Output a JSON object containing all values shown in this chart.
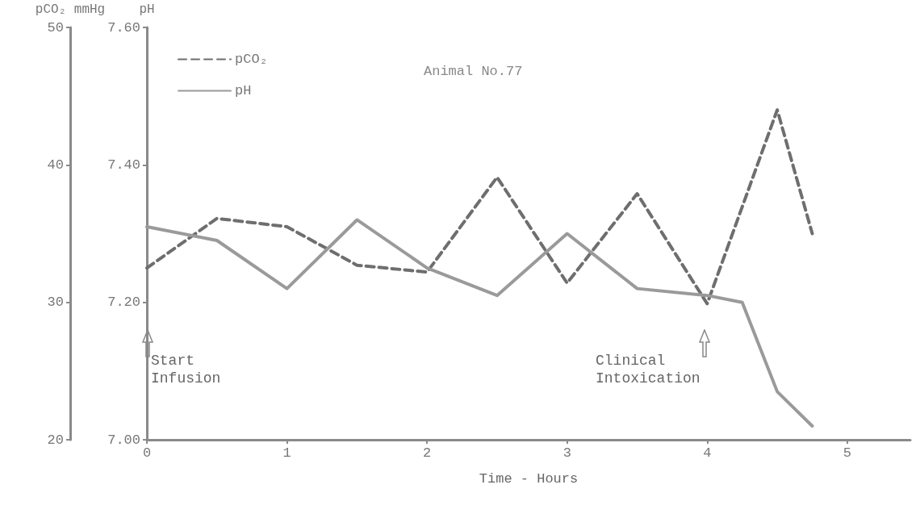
{
  "chart_data": {
    "type": "line",
    "title": "Animal No.77",
    "xlabel": "Time - Hours",
    "ylabel": "pH",
    "y2label": "pCO₂ mmHg",
    "x": [
      0,
      0.5,
      1,
      1.5,
      2,
      2.5,
      3,
      3.5,
      4,
      4.25,
      4.5,
      4.75
    ],
    "series": [
      {
        "name": "pCO₂",
        "color": "#6e6e6e",
        "axis": "y2",
        "line_style": "dashed",
        "x": [
          0,
          0.5,
          1,
          1.5,
          2,
          2.5,
          3,
          3.5,
          4,
          4.5,
          4.75
        ],
        "values": [
          32.5,
          36.1,
          35.5,
          32.7,
          32.2,
          39.1,
          31.4,
          37.9,
          29.9,
          44.0,
          35.0
        ]
      },
      {
        "name": "pH",
        "color": "#9a9a9a",
        "line_style": "solid",
        "values": [
          7.31,
          7.29,
          7.22,
          7.32,
          7.25,
          7.21,
          7.3,
          7.22,
          7.21,
          7.2,
          7.07,
          7.02
        ]
      }
    ],
    "xlim": [
      0,
      5.45
    ],
    "xticks": [
      0,
      1,
      2,
      3,
      4,
      5
    ],
    "ylim": [
      7.0,
      7.6
    ],
    "yticks": [
      {
        "value": 7.0,
        "label": "7.00"
      },
      {
        "value": 7.2,
        "label": "7.20"
      },
      {
        "value": 7.4,
        "label": "7.40"
      },
      {
        "value": 7.6,
        "label": "7.60"
      }
    ],
    "y2lim": [
      20,
      50
    ],
    "y2ticks": [
      20,
      30,
      40,
      50
    ],
    "annotations": [
      "Start\nInfusion",
      "Clinical\nIntoxication"
    ],
    "legend": "top left",
    "grid": false,
    "marker": "none"
  }
}
